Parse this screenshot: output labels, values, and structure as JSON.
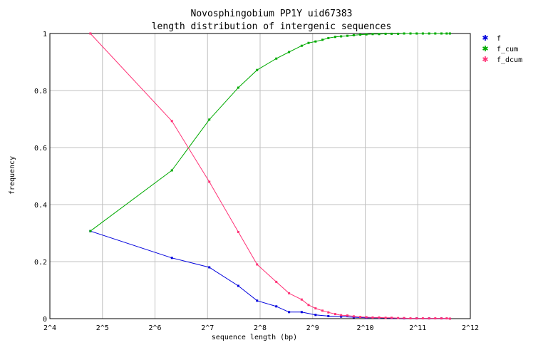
{
  "chart_data": {
    "type": "line",
    "title": "Novosphingobium PP1Y uid67383",
    "subtitle": "length distribution of intergenic sequences",
    "xlabel": "sequence length (bp)",
    "ylabel": "frequency",
    "x_scale": "log2",
    "xlim": [
      16,
      4096
    ],
    "ylim": [
      0,
      1
    ],
    "x_ticks": [
      {
        "value": 16,
        "label": "2^4"
      },
      {
        "value": 32,
        "label": "2^5"
      },
      {
        "value": 64,
        "label": "2^6"
      },
      {
        "value": 128,
        "label": "2^7"
      },
      {
        "value": 256,
        "label": "2^8"
      },
      {
        "value": 512,
        "label": "2^9"
      },
      {
        "value": 1024,
        "label": "2^10"
      },
      {
        "value": 2048,
        "label": "2^11"
      },
      {
        "value": 4096,
        "label": "2^12"
      }
    ],
    "y_ticks": [
      {
        "value": 0,
        "label": "0"
      },
      {
        "value": 0.2,
        "label": "0.2"
      },
      {
        "value": 0.4,
        "label": "0.4"
      },
      {
        "value": 0.6,
        "label": "0.6"
      },
      {
        "value": 0.8,
        "label": "0.8"
      },
      {
        "value": 1,
        "label": "1"
      }
    ],
    "grid": true,
    "legend_position": "top-right",
    "series": [
      {
        "name": "f",
        "color": "#0000dd",
        "points": [
          [
            27.3,
            0.307
          ],
          [
            80,
            0.213
          ],
          [
            131,
            0.18
          ],
          [
            192,
            0.115
          ],
          [
            246,
            0.063
          ],
          [
            317,
            0.043
          ],
          [
            375,
            0.023
          ],
          [
            443,
            0.023
          ],
          [
            532,
            0.013
          ],
          [
            630,
            0.009
          ],
          [
            745,
            0.007
          ],
          [
            880,
            0.005
          ],
          [
            1040,
            0.003
          ],
          [
            1230,
            0.003
          ],
          [
            1450,
            0.002
          ],
          [
            1710,
            0.001
          ],
          [
            2020,
            0.001
          ],
          [
            2380,
            0.001
          ],
          [
            2800,
            0.001
          ],
          [
            3130,
            0.0
          ]
        ]
      },
      {
        "name": "f_cum",
        "color": "#00aa00",
        "points": [
          [
            27.3,
            0.307
          ],
          [
            80,
            0.52
          ],
          [
            131,
            0.698
          ],
          [
            192,
            0.81
          ],
          [
            246,
            0.872
          ],
          [
            317,
            0.912
          ],
          [
            375,
            0.935
          ],
          [
            443,
            0.957
          ],
          [
            485,
            0.967
          ],
          [
            532,
            0.972
          ],
          [
            583,
            0.978
          ],
          [
            630,
            0.984
          ],
          [
            690,
            0.988
          ],
          [
            745,
            0.99
          ],
          [
            810,
            0.992
          ],
          [
            880,
            0.994
          ],
          [
            960,
            0.996
          ],
          [
            1040,
            0.997
          ],
          [
            1130,
            0.998
          ],
          [
            1230,
            0.998
          ],
          [
            1340,
            0.999
          ],
          [
            1450,
            0.999
          ],
          [
            1580,
            0.999
          ],
          [
            1710,
            1.0
          ],
          [
            1860,
            1.0
          ],
          [
            2020,
            1.0
          ],
          [
            2190,
            1.0
          ],
          [
            2380,
            1.0
          ],
          [
            2580,
            1.0
          ],
          [
            2800,
            1.0
          ],
          [
            3000,
            1.0
          ],
          [
            3130,
            1.0
          ]
        ]
      },
      {
        "name": "f_dcum",
        "color": "#ff3377",
        "points": [
          [
            27.3,
            1.0
          ],
          [
            80,
            0.693
          ],
          [
            131,
            0.48
          ],
          [
            192,
            0.304
          ],
          [
            246,
            0.19
          ],
          [
            317,
            0.129
          ],
          [
            375,
            0.089
          ],
          [
            443,
            0.067
          ],
          [
            485,
            0.048
          ],
          [
            532,
            0.036
          ],
          [
            583,
            0.028
          ],
          [
            630,
            0.022
          ],
          [
            690,
            0.016
          ],
          [
            745,
            0.012
          ],
          [
            810,
            0.011
          ],
          [
            880,
            0.008
          ],
          [
            960,
            0.006
          ],
          [
            1040,
            0.005
          ],
          [
            1130,
            0.004
          ],
          [
            1230,
            0.004
          ],
          [
            1340,
            0.003
          ],
          [
            1450,
            0.003
          ],
          [
            1580,
            0.002
          ],
          [
            1710,
            0.002
          ],
          [
            1860,
            0.001
          ],
          [
            2020,
            0.001
          ],
          [
            2190,
            0.001
          ],
          [
            2380,
            0.001
          ],
          [
            2580,
            0.001
          ],
          [
            2800,
            0.001
          ],
          [
            3000,
            0.001
          ],
          [
            3130,
            0.0
          ]
        ]
      }
    ]
  }
}
